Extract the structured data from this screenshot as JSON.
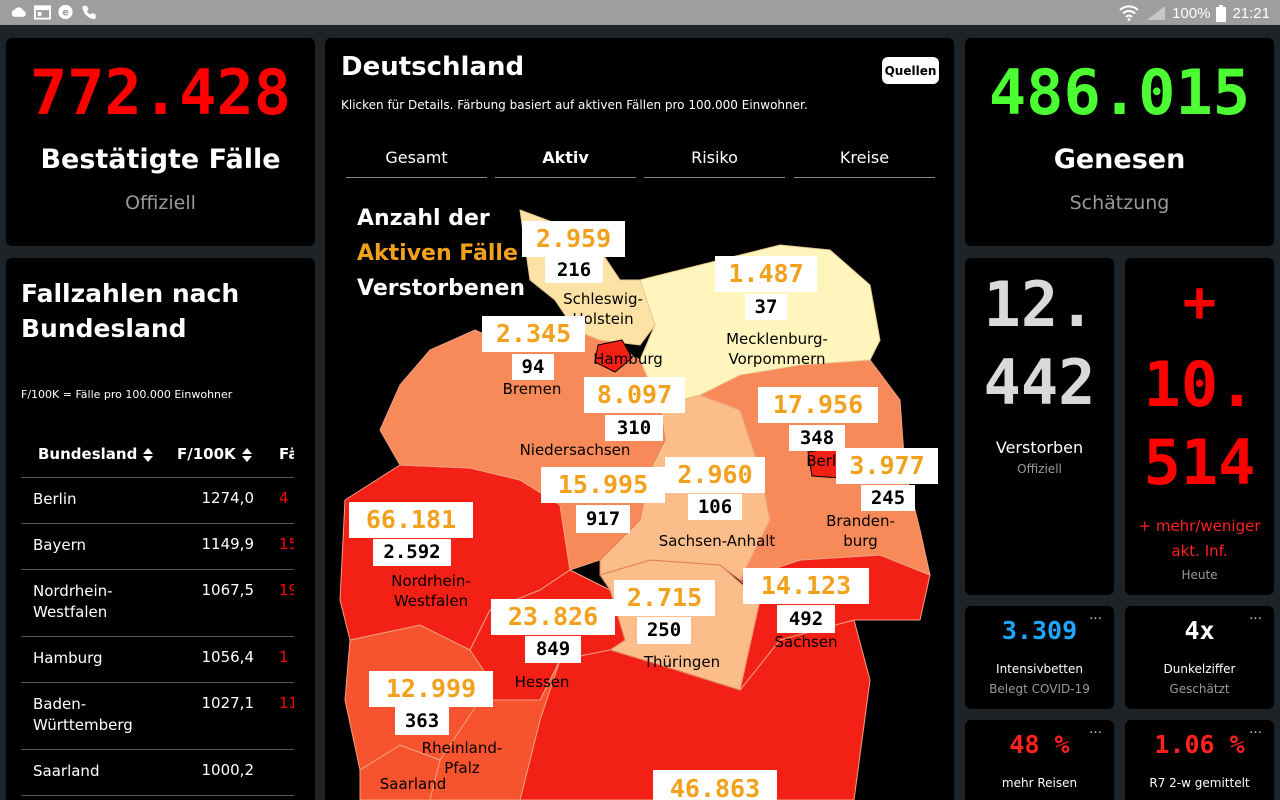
{
  "statusbar": {
    "icons": [
      "cloud-icon",
      "calendar-icon",
      "edge-icon",
      "phone-icon"
    ],
    "battery": "100%",
    "time": "21:21"
  },
  "confirmed": {
    "value": "772.428",
    "title": "Bestätigte Fälle",
    "sub": "Offiziell",
    "color": "#ff0000"
  },
  "recovered": {
    "value": "486.015",
    "title": "Genesen",
    "sub": "Schätzung",
    "color": "#4cff33"
  },
  "deaths": {
    "line1": "12.",
    "line2": "442",
    "label": "Verstorben",
    "sub": "Offiziell"
  },
  "delta": {
    "sign": "+",
    "line1": "10.",
    "line2": "514",
    "label1": "+ mehr/weniger",
    "label2": "akt. Inf.",
    "sub": "Heute"
  },
  "icu": {
    "value": "3.309",
    "label": "Intensivbetten",
    "sub": "Belegt COVID-19",
    "color": "#1ea7ff"
  },
  "dark": {
    "value": "4x",
    "label": "Dunkelziffer",
    "sub": "Geschätzt"
  },
  "travel": {
    "value": "48 %",
    "label": "mehr Reisen"
  },
  "r7": {
    "value": "1.06 %",
    "label": "R7 2-w gemittelt"
  },
  "table": {
    "title_line1": "Fallzahlen nach",
    "title_line2": "Bundesland",
    "note": "F/100K = Fälle pro 100.000 Einwohner",
    "col_state": "Bundesland",
    "col_rate": "F/100K",
    "col_third": "Fä",
    "rows": [
      {
        "name1": "Berlin",
        "name2": "",
        "rate": "1274,0",
        "cut": "4"
      },
      {
        "name1": "Bayern",
        "name2": "",
        "rate": "1149,9",
        "cut": "15"
      },
      {
        "name1": "Nordrhein-",
        "name2": "Westfalen",
        "rate": "1067,5",
        "cut": "19"
      },
      {
        "name1": "Hamburg",
        "name2": "",
        "rate": "1056,4",
        "cut": "1"
      },
      {
        "name1": "Baden-",
        "name2": "Württemberg",
        "rate": "1027,1",
        "cut": "11"
      },
      {
        "name1": "Saarland",
        "name2": "",
        "rate": "1000,2",
        "cut": ""
      }
    ]
  },
  "map": {
    "title": "Deutschland",
    "subtitle": "Klicken für Details. Färbung basiert auf aktiven Fällen pro 100.000 Einwohner.",
    "sources": "Quellen",
    "tabs": [
      "Gesamt",
      "Aktiv",
      "Risiko",
      "Kreise"
    ],
    "active_tab": "Aktiv",
    "legend": {
      "line1": "Anzahl der",
      "line2": "Aktiven Fälle",
      "line3": "Verstorbenen"
    },
    "states": {
      "sh": {
        "active": "2.959",
        "deaths": "216",
        "name1": "Schleswig-",
        "name2": "Holstein"
      },
      "mv": {
        "active": "1.487",
        "deaths": "37",
        "name1": "Mecklenburg-",
        "name2": "Vorpommern"
      },
      "hb": {
        "active": "2.345",
        "deaths": "94",
        "name1": "Bremen",
        "name2": ""
      },
      "hh": {
        "name1": "Hamburg",
        "name2": ""
      },
      "ni": {
        "active": "8.097",
        "deaths": "310",
        "name1": "Niedersachsen",
        "name2": ""
      },
      "bb": {
        "active": "17.956",
        "deaths": "348",
        "name1": "Branden-",
        "name2": "burg"
      },
      "be": {
        "active": "3.977",
        "deaths": "245",
        "name1": "Berlin",
        "name2": ""
      },
      "st": {
        "active": "2.960",
        "deaths": "106",
        "name1": "Sachsen-Anhalt",
        "name2": ""
      },
      "nw2": {
        "active": "15.995",
        "deaths": "917"
      },
      "nw": {
        "active": "66.181",
        "deaths": "2.592",
        "name1": "Nordrhein-",
        "name2": "Westfalen"
      },
      "sn": {
        "active": "14.123",
        "deaths": "492",
        "name1": "Sachsen",
        "name2": ""
      },
      "th": {
        "active": "2.715",
        "deaths": "250",
        "name1": "Thüringen",
        "name2": ""
      },
      "he": {
        "active": "23.826",
        "deaths": "849",
        "name1": "Hessen",
        "name2": ""
      },
      "rp": {
        "active": "12.999",
        "deaths": "363",
        "name1": "Rheinland-",
        "name2": "Pfalz"
      },
      "sl": {
        "name1": "Saarland",
        "name2": ""
      },
      "by": {
        "active": "46.863"
      }
    },
    "colors": {
      "dark_red": "#f22015",
      "red_orange": "#f7532f",
      "orange": "#f88a5a",
      "light_orange": "#fbbd8a",
      "pale": "#fde2a6",
      "yellow": "#fff5bd"
    }
  }
}
